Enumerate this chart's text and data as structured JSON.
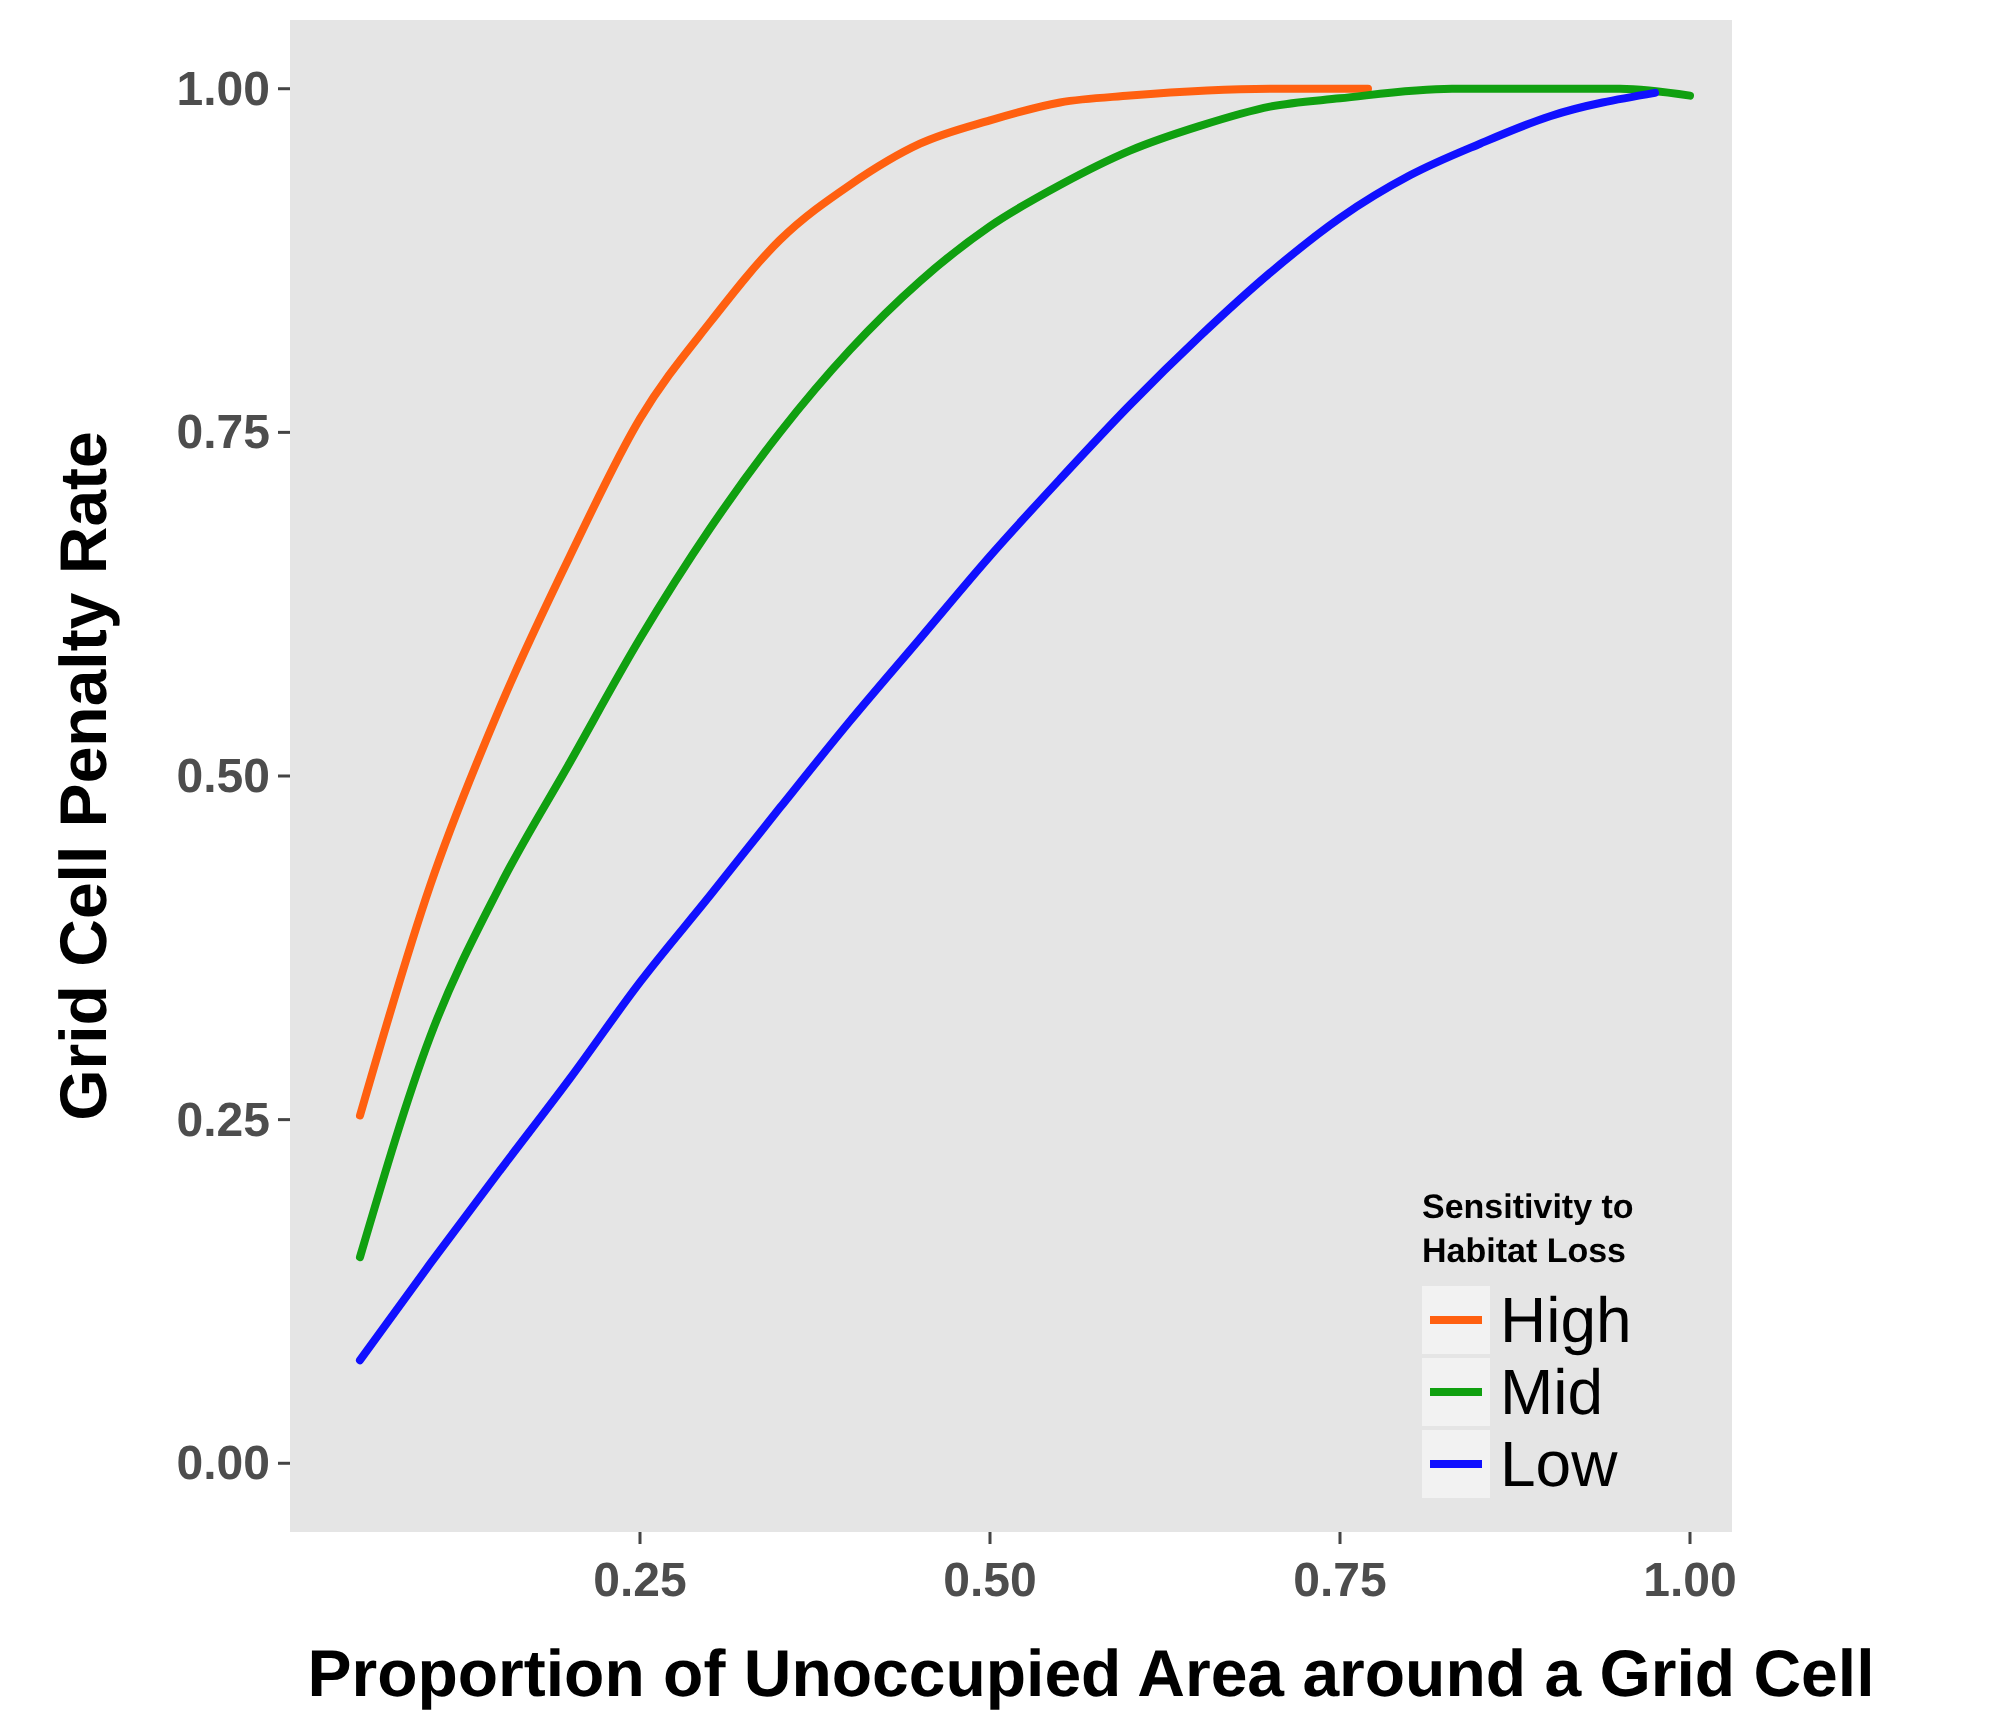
{
  "chart_data": {
    "type": "line",
    "xlabel": "Proportion of Unoccupied Area around a Grid Cell",
    "ylabel": "Grid Cell Penalty Rate",
    "legend_title": "Sensitivity to Habitat Loss",
    "legend": "bottom right",
    "grid": false,
    "xlim": [
      0.0,
      1.03
    ],
    "ylim": [
      -0.05,
      1.05
    ],
    "xticks": [
      {
        "value": 0.25,
        "label": "0.25"
      },
      {
        "value": 0.5,
        "label": "0.50"
      },
      {
        "value": 0.75,
        "label": "0.75"
      },
      {
        "value": 1.0,
        "label": "1.00"
      }
    ],
    "yticks": [
      {
        "value": 0.0,
        "label": "0.00"
      },
      {
        "value": 0.25,
        "label": "0.25"
      },
      {
        "value": 0.5,
        "label": "0.50"
      },
      {
        "value": 0.75,
        "label": "0.75"
      },
      {
        "value": 1.0,
        "label": "1.00"
      }
    ],
    "series": [
      {
        "name": "High",
        "color": "#ff6010",
        "x": [
          0.05,
          0.1,
          0.15,
          0.2,
          0.25,
          0.3,
          0.35,
          0.4,
          0.45,
          0.5,
          0.55,
          0.6,
          0.7,
          0.77
        ],
        "values": [
          0.253,
          0.42,
          0.55,
          0.66,
          0.76,
          0.83,
          0.89,
          0.93,
          0.96,
          0.977,
          0.99,
          0.995,
          1.0,
          1.0
        ]
      },
      {
        "name": "Mid",
        "color": "#10a010",
        "x": [
          0.05,
          0.1,
          0.15,
          0.2,
          0.25,
          0.3,
          0.35,
          0.4,
          0.45,
          0.5,
          0.55,
          0.6,
          0.65,
          0.7,
          0.75,
          0.83,
          0.95,
          1.0
        ],
        "values": [
          0.15,
          0.31,
          0.42,
          0.51,
          0.6,
          0.68,
          0.75,
          0.81,
          0.86,
          0.9,
          0.93,
          0.955,
          0.973,
          0.987,
          0.993,
          1.0,
          1.0,
          0.995
        ]
      },
      {
        "name": "Low",
        "color": "#1010ff",
        "x": [
          0.05,
          0.1,
          0.15,
          0.2,
          0.25,
          0.3,
          0.35,
          0.4,
          0.45,
          0.5,
          0.55,
          0.6,
          0.65,
          0.7,
          0.75,
          0.8,
          0.85,
          0.9,
          0.975
        ],
        "values": [
          0.075,
          0.145,
          0.213,
          0.28,
          0.35,
          0.413,
          0.477,
          0.54,
          0.6,
          0.66,
          0.716,
          0.77,
          0.82,
          0.866,
          0.906,
          0.937,
          0.96,
          0.98,
          0.997
        ]
      }
    ]
  }
}
